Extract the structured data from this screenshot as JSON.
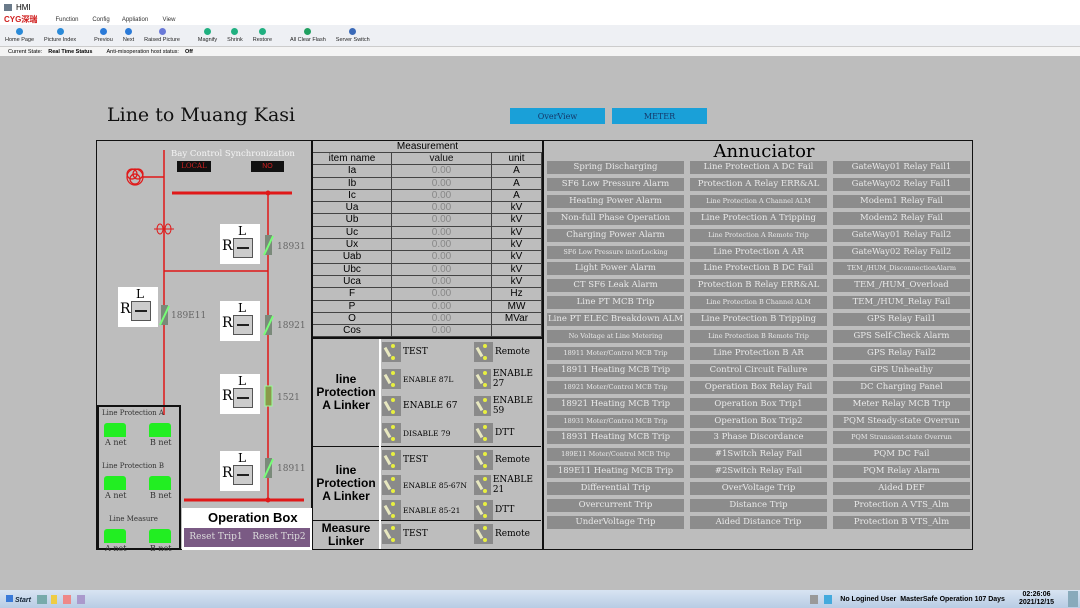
{
  "window": {
    "title": "HMI"
  },
  "menu": {
    "logo": "CYG深瑞",
    "items": [
      "Function",
      "Config",
      "Appliation",
      "View"
    ]
  },
  "toolbar": [
    {
      "label": "Home Page",
      "icon": "home-icon",
      "color": "#2a8ad8"
    },
    {
      "label": "Picture Index",
      "icon": "index-icon",
      "color": "#2a8ad8"
    },
    {
      "label": "Previou",
      "icon": "previous-icon",
      "color": "#2a7ad8"
    },
    {
      "label": "Next",
      "icon": "next-icon",
      "color": "#2a7ad8"
    },
    {
      "label": "Raised Picture",
      "icon": "raised-icon",
      "color": "#6a7ad8"
    },
    {
      "label": "Magnify",
      "icon": "magnify-icon",
      "color": "#20b080"
    },
    {
      "label": "Shrink",
      "icon": "shrink-icon",
      "color": "#20b080"
    },
    {
      "label": "Restore",
      "icon": "restore-icon",
      "color": "#20b080"
    },
    {
      "label": "All Clear Flash",
      "icon": "clear-flash-icon",
      "color": "#20a060"
    },
    {
      "label": "Server Switch",
      "icon": "server-switch-icon",
      "color": "#3a6ab8"
    }
  ],
  "status": {
    "state_label": "Current State:",
    "state_value": "Real Time Status",
    "anti_label": "Anti-misoperation host status:",
    "anti_value": "Off"
  },
  "page": {
    "title": "Line to Muang Kasi",
    "overview": "OverView",
    "meter": "METER"
  },
  "left": {
    "bay_label": "Bay Control Synchronization",
    "local": "LOCAL",
    "no": "NO",
    "switches": [
      "18931",
      "189E11",
      "18921",
      "1521",
      "18911"
    ],
    "dev_r": "R",
    "dev_l": "L",
    "net_groups": [
      {
        "title": "Line Protection A",
        "a": "A net",
        "b": "B net"
      },
      {
        "title": "Line Protection B",
        "a": "A net",
        "b": "B net"
      },
      {
        "title": "Line Measure",
        "a": "A net",
        "b": "B net"
      }
    ],
    "op_box": "Operation Box",
    "reset1": "Reset Trip1",
    "reset2": "Reset Trip2"
  },
  "measurement": {
    "title": "Measurement",
    "headers": [
      "item name",
      "value",
      "unit"
    ],
    "rows": [
      [
        "Ia",
        "0.00",
        "A"
      ],
      [
        "Ib",
        "0.00",
        "A"
      ],
      [
        "Ic",
        "0.00",
        "A"
      ],
      [
        "Ua",
        "0.00",
        "kV"
      ],
      [
        "Ub",
        "0.00",
        "kV"
      ],
      [
        "Uc",
        "0.00",
        "kV"
      ],
      [
        "Ux",
        "0.00",
        "kV"
      ],
      [
        "Uab",
        "0.00",
        "kV"
      ],
      [
        "Ubc",
        "0.00",
        "kV"
      ],
      [
        "Uca",
        "0.00",
        "kV"
      ],
      [
        "F",
        "0.00",
        "Hz"
      ],
      [
        "P",
        "0.00",
        "MW"
      ],
      [
        "O",
        "0.00",
        "MVar"
      ],
      [
        "Cos",
        "0.00",
        ""
      ]
    ]
  },
  "linkers": [
    {
      "name": "line Protection A Linker",
      "items": [
        [
          "TEST",
          "Remote"
        ],
        [
          "ENABLE 87L",
          "ENABLE 27"
        ],
        [
          "ENABLE 67",
          "ENABLE 59"
        ],
        [
          "DISABLE 79",
          "DTT"
        ]
      ]
    },
    {
      "name": "line Protection A Linker",
      "items": [
        [
          "TEST",
          "Remote"
        ],
        [
          "ENABLE 85-67N",
          "ENABLE 21"
        ],
        [
          "ENABLE 85-21",
          "DTT"
        ]
      ]
    },
    {
      "name": "Measure Linker",
      "items": [
        [
          "TEST",
          "Remote"
        ]
      ]
    }
  ],
  "annunciator": {
    "title": "Annuciator",
    "columns": [
      [
        "Spring Discharging",
        "SF6 Low Pressure Alarm",
        "Heating Power Alarm",
        "Non-full Phase Operation",
        "Charging Power Alarm",
        "SF6 Low Pressure interLocking",
        "Light Power Alarm",
        "CT SF6 Leak Alarm",
        "Line PT MCB Trip",
        "Line PT ELEC Breakdown ALM",
        "No Voltage at Line Metering",
        "18911 Moter/Control MCB Trip",
        "18911 Heating MCB Trip",
        "18921 Moter/Control MCB Trip",
        "18921 Heating MCB Trip",
        "18931 Moter/Control MCB Trip",
        "18931 Heating MCB Trip",
        "189E11 Moter/Control MCB Trip",
        "189E11 Heating MCB Trip",
        "Differential Trip",
        "Overcurrent Trip",
        "UnderVoltage Trip"
      ],
      [
        "Line Protection A DC Fail",
        "Protection A Relay ERR&AL",
        "Line Protection A Channel ALM",
        "Line Protection A Tripping",
        "Line Protection A Remote Trip",
        "Line Protection A AR",
        "Line Protection B DC Fail",
        "Protection B Relay ERR&AL",
        "Line Protection B Channel ALM",
        "Line Protection B Tripping",
        "Line Protection B Remote Trip",
        "Line Protection B AR",
        "Control Circuit Failure",
        "Operation Box Relay Fail",
        "Operation Box Trip1",
        "Operation Box Trip2",
        "3 Phase Discordance",
        "#1Switch Relay Fail",
        "#2Switch Relay Fail",
        "OverVoltage Trip",
        "Distance Trip",
        "Aided Distance Trip"
      ],
      [
        "GateWay01 Relay Fail1",
        "GateWay02 Relay Fail1",
        "Modem1 Relay Fail",
        "Modem2 Relay Fail",
        "GateWay01 Relay Fail2",
        "GateWay02 Relay Fail2",
        "TEM_/HUM_DisconnectionAlarm",
        "TEM_/HUM_Overload",
        "TEM_/HUM_Relay Fail",
        "GPS Relay Fail1",
        "GPS Self-Check Alarm",
        "GPS Relay Fail2",
        "GPS Unheathy",
        "DC Charging Panel",
        "Meter Relay MCB Trip",
        "PQM Steady-state Overrun",
        "PQM Stransient-state Overrun",
        "PQM DC Fail",
        "PQM Relay Alarm",
        "Aided DEF",
        "Protection A VTS_Alm",
        "Protection B VTS_Alm"
      ]
    ]
  },
  "taskbar": {
    "start": "Start",
    "user": "No Logined User",
    "safe": "MasterSafe Operation 107 Days",
    "time": "02:26:06",
    "date": "2021/12/15"
  },
  "colors": {
    "bus": "#e01818",
    "nav_button": "#1aa0d8",
    "net_ok": "#22ee22",
    "reset_button": "#7a5a84"
  }
}
